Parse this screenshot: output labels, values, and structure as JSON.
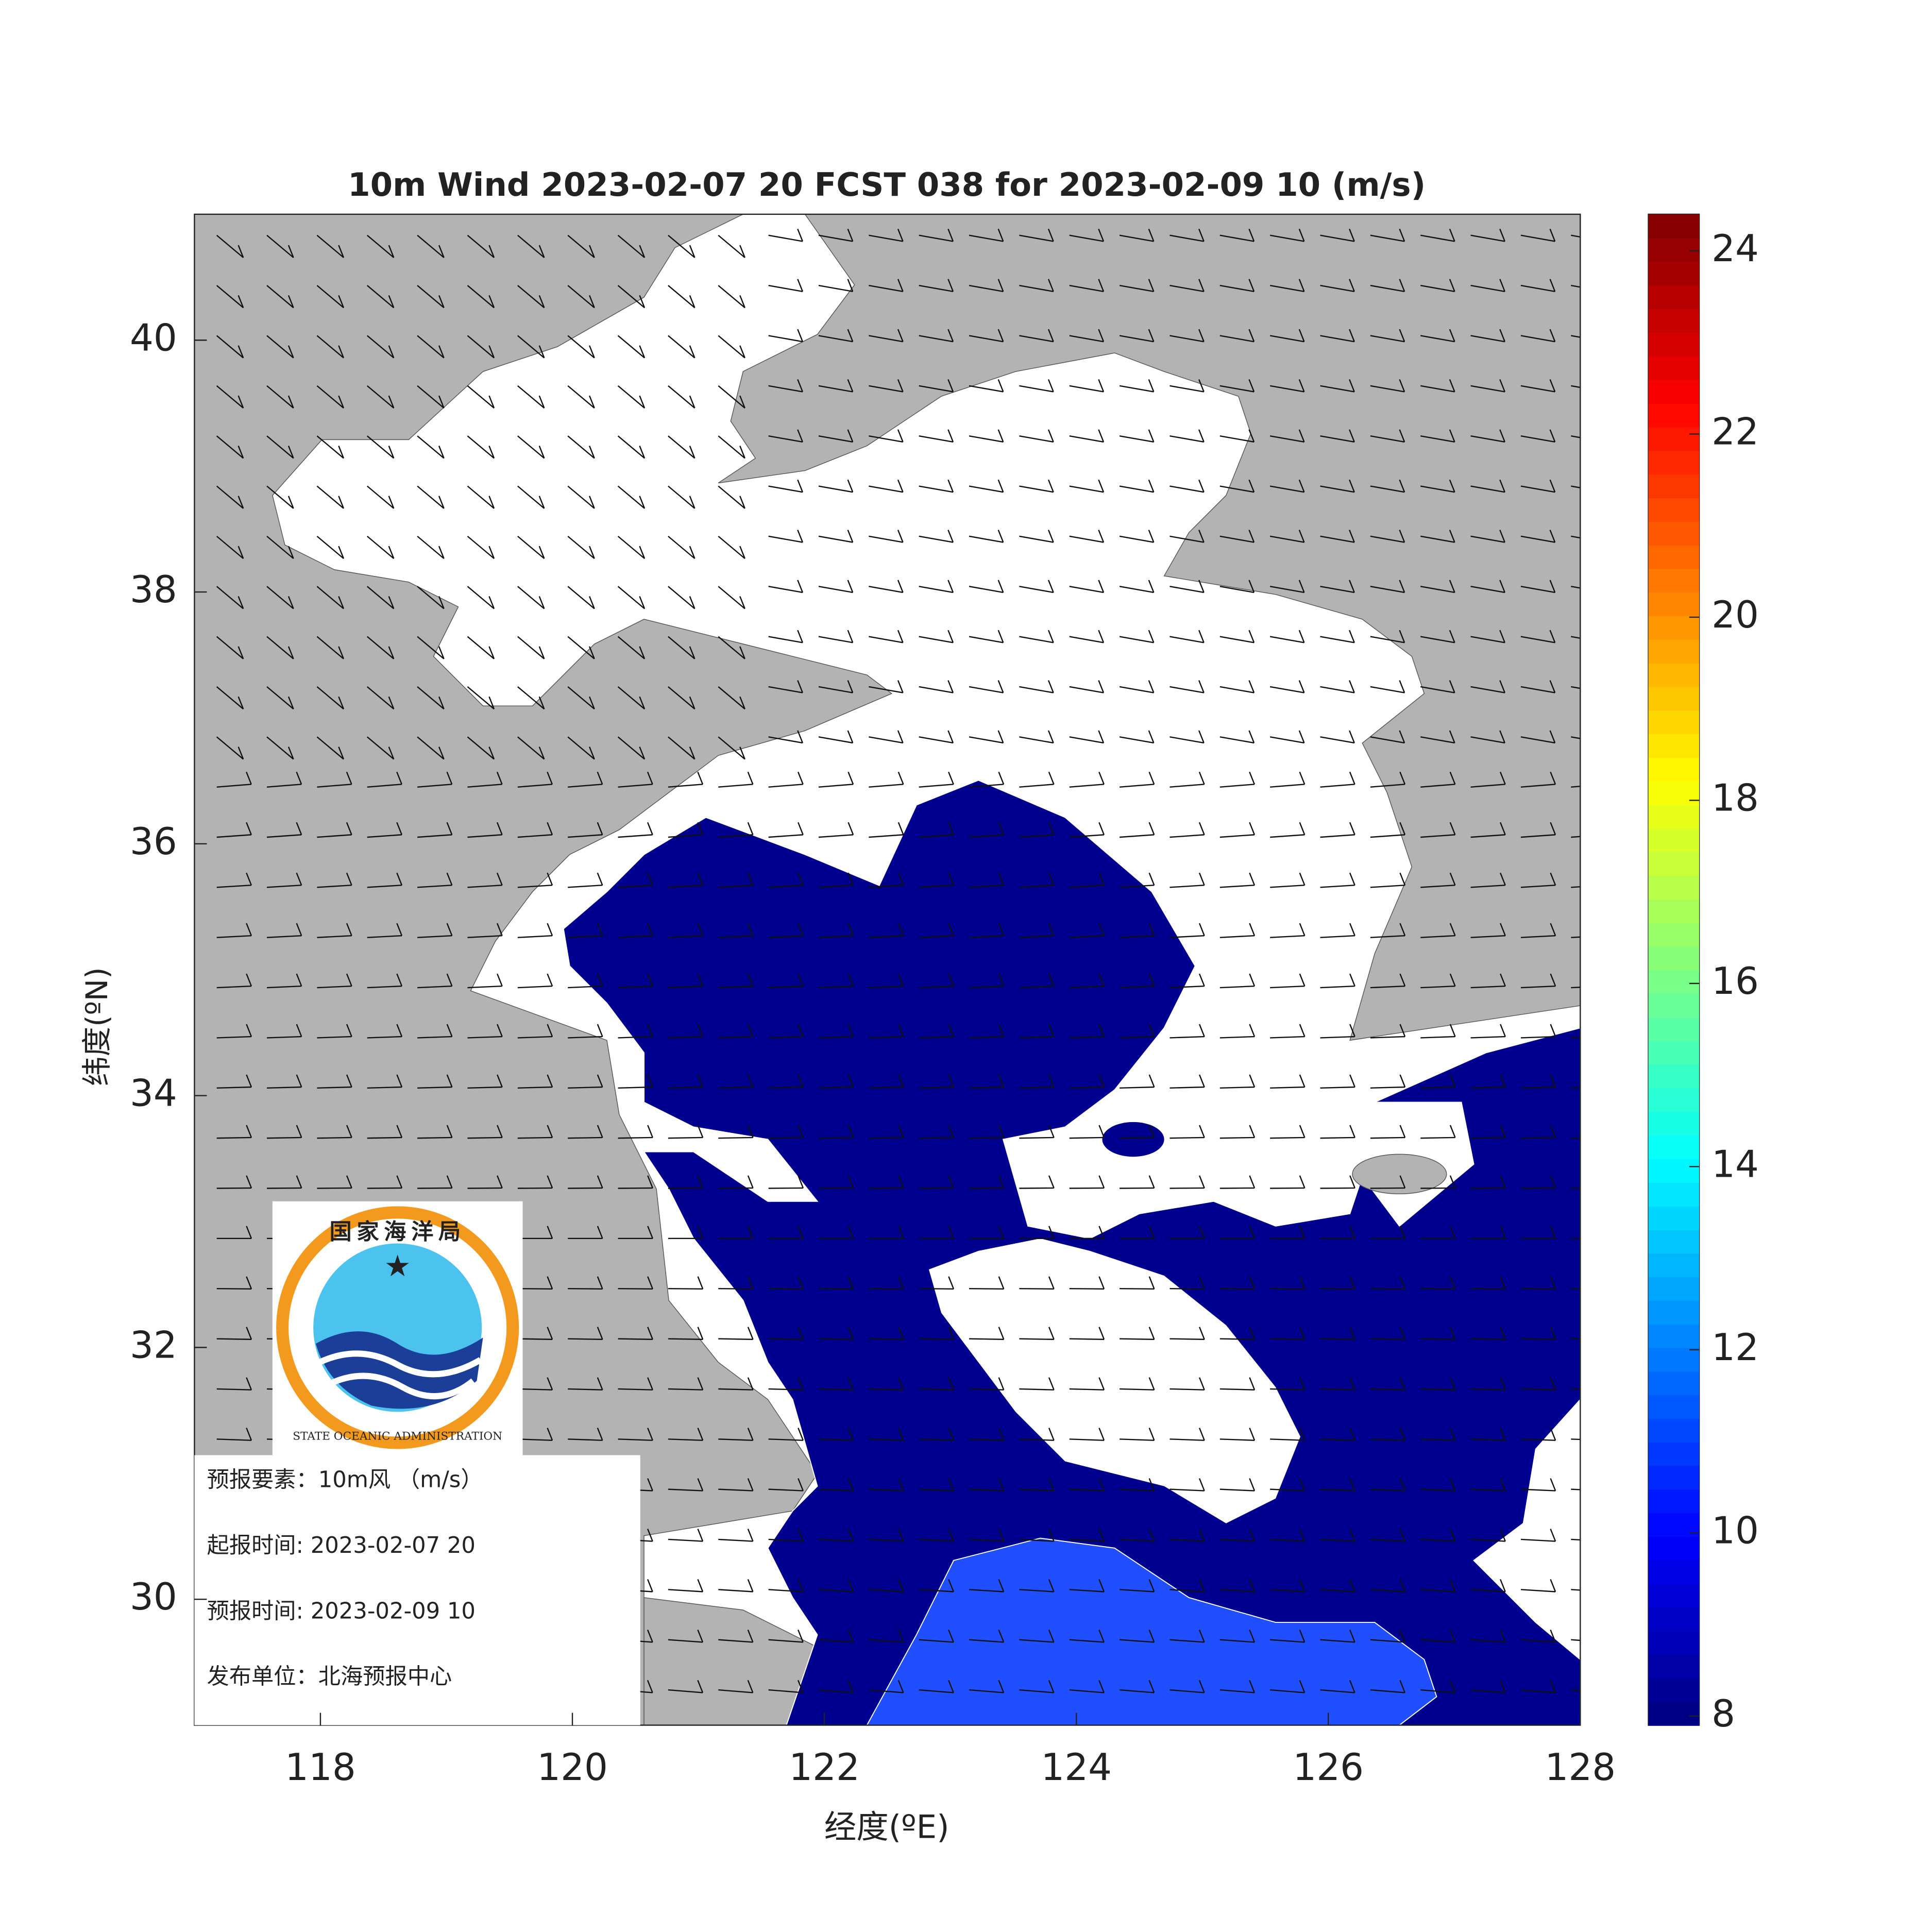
{
  "chart_data": {
    "type": "map",
    "title": "10m Wind 2023-02-07 20 FCST 038 for 2023-02-09 10 (m/s)",
    "xlabel": "经度(ºE)",
    "ylabel": "纬度(ºN)",
    "xlim": [
      117,
      128
    ],
    "xticks": [
      118,
      120,
      122,
      124,
      126,
      128
    ],
    "ylim": [
      29,
      41
    ],
    "yticks": [
      30,
      32,
      34,
      36,
      38,
      40
    ],
    "colorbar": {
      "colormap": "jet",
      "clim": [
        7.9,
        24.4
      ],
      "ticks": [
        8,
        10,
        12,
        14,
        16,
        18,
        20,
        22,
        24
      ]
    },
    "logo": {
      "name_cn": "国家海洋局",
      "name_en": "STATE OCEANIC ADMINISTRATION"
    },
    "info": [
      "预报要素：10m风 （m/s）",
      "起报时间: 2023-02-07 20",
      "预报时间: 2023-02-09 10",
      "发布单位：北海预报中心"
    ]
  }
}
